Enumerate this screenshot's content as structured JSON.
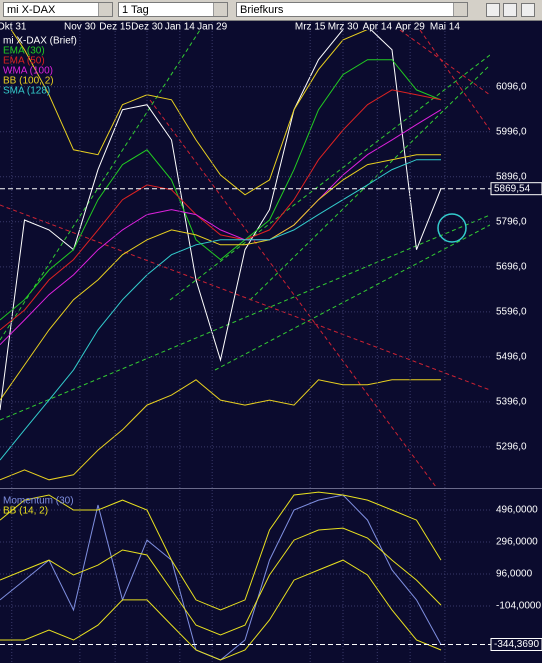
{
  "toolbar": {
    "symbol": "mi X-DAX",
    "interval": "1 Tag",
    "price_type": "Briefkurs"
  },
  "chart_data": [
    {
      "type": "line",
      "grid": true,
      "x": [
        0,
        5,
        10,
        15,
        20,
        25,
        30,
        35,
        40,
        45,
        50,
        55,
        60,
        65,
        70,
        75,
        80,
        85,
        90
      ],
      "xlim": [
        0,
        100
      ],
      "xticks": [
        {
          "value": 2.4,
          "label": "Okt 31"
        },
        {
          "value": 16.3,
          "label": "Nov 30"
        },
        {
          "value": 23.5,
          "label": "Dez 15"
        },
        {
          "value": 30,
          "label": "Dez 30"
        },
        {
          "value": 36.7,
          "label": "Jan 14"
        },
        {
          "value": 43.3,
          "label": "Jan 29"
        },
        {
          "value": 63.3,
          "label": "Mrz 15"
        },
        {
          "value": 70,
          "label": "Mrz 30"
        },
        {
          "value": 77,
          "label": "Apr 14"
        },
        {
          "value": 83.7,
          "label": "Apr 29"
        },
        {
          "value": 90.8,
          "label": "Mai 14"
        }
      ],
      "ylim": [
        5207,
        6222
      ],
      "yticks": [
        {
          "value": 5296,
          "label": "5296,0"
        },
        {
          "value": 5396,
          "label": "5396,0"
        },
        {
          "value": 5496,
          "label": "5496,0"
        },
        {
          "value": 5596,
          "label": "5596,0"
        },
        {
          "value": 5696,
          "label": "5696,0"
        },
        {
          "value": 5796,
          "label": "5796,0"
        },
        {
          "value": 5896,
          "label": "5896,0"
        },
        {
          "value": 5996,
          "label": "5996,0"
        },
        {
          "value": 6096,
          "label": "6096,0"
        }
      ],
      "last_value": {
        "value": 5869.54,
        "label": "5869,54"
      },
      "series": [
        {
          "name": "mi X-DAX (Brief)",
          "color": "#ffffff",
          "values": [
            5378,
            5800,
            5778,
            5734,
            5912,
            6045,
            6056,
            5978,
            5667,
            5489,
            5734,
            5823,
            6045,
            6156,
            6223,
            6230,
            6178,
            5734,
            5869.54
          ]
        },
        {
          "name": "EMA (30)",
          "color": "#22cc22",
          "values": [
            5578,
            5623,
            5689,
            5734,
            5845,
            5923,
            5956,
            5889,
            5756,
            5712,
            5756,
            5800,
            5912,
            6045,
            6123,
            6156,
            6156,
            6089,
            6067
          ]
        },
        {
          "name": "EMA (50)",
          "color": "#dd2222",
          "values": [
            5556,
            5600,
            5667,
            5712,
            5778,
            5845,
            5878,
            5867,
            5812,
            5767,
            5756,
            5778,
            5845,
            5934,
            6000,
            6056,
            6089,
            6078,
            6067
          ]
        },
        {
          "name": "WMA (100)",
          "color": "#dd22dd",
          "values": [
            5523,
            5578,
            5634,
            5678,
            5734,
            5778,
            5812,
            5823,
            5812,
            5778,
            5756,
            5756,
            5789,
            5845,
            5900,
            5945,
            5978,
            6012,
            6045
          ]
        },
        {
          "name": "BB (100, 2)",
          "color": "#e8d020",
          "values": [
            5400,
            5478,
            5556,
            5623,
            5667,
            5723,
            5756,
            5778,
            5767,
            5745,
            5745,
            5756,
            5789,
            5845,
            5889,
            5923,
            5934,
            5945,
            5945
          ],
          "upper": [
            6260,
            6178,
            6078,
            5956,
            5945,
            6056,
            6078,
            6067,
            5978,
            5900,
            5856,
            5889,
            6045,
            6134,
            6200,
            6223,
            6223,
            6223,
            6223
          ],
          "lower": [
            5223,
            5245,
            5223,
            5234,
            5289,
            5334,
            5389,
            5411,
            5445,
            5400,
            5389,
            5400,
            5389,
            5445,
            5434,
            5434,
            5445,
            5445,
            5445
          ]
        },
        {
          "name": "SMA (128)",
          "color": "#33cccc",
          "values": [
            5267,
            5334,
            5400,
            5467,
            5556,
            5623,
            5678,
            5723,
            5745,
            5756,
            5756,
            5756,
            5778,
            5812,
            5845,
            5878,
            5912,
            5934,
            5934
          ]
        }
      ]
    },
    {
      "type": "line",
      "grid": true,
      "x": [
        0,
        5,
        10,
        15,
        20,
        25,
        30,
        35,
        40,
        45,
        50,
        55,
        60,
        65,
        70,
        75,
        80,
        85,
        90
      ],
      "xlim": [
        0,
        100
      ],
      "ylim": [
        -460,
        621
      ],
      "yticks": [
        {
          "value": 496,
          "label": "496,0000"
        },
        {
          "value": 296,
          "label": "296,0000"
        },
        {
          "value": 96,
          "label": "96,0000"
        },
        {
          "value": -104,
          "label": "-104,0000"
        }
      ],
      "last_value": {
        "value": -344.369,
        "label": "-344,3690"
      },
      "series": [
        {
          "name": "Momentum (30)",
          "color": "#7f8fe0",
          "values": [
            -66,
            58,
            183,
            -129,
            527,
            -66,
            308,
            183,
            -379,
            -441,
            -316,
            183,
            496,
            558,
            590,
            433,
            121,
            -66,
            -344.369
          ]
        },
        {
          "name": "BB (14, 2)",
          "color": "#e8e020",
          "values": [
            58,
            121,
            183,
            90,
            152,
            246,
            215,
            -4,
            -223,
            -285,
            -223,
            90,
            308,
            371,
            383,
            321,
            183,
            58,
            -98
          ],
          "upper": [
            433,
            558,
            590,
            496,
            496,
            558,
            496,
            183,
            -66,
            -129,
            -66,
            371,
            590,
            608,
            590,
            558,
            496,
            433,
            183
          ],
          "lower": [
            -316,
            -316,
            -254,
            -316,
            -223,
            -66,
            -66,
            -223,
            -379,
            -441,
            -379,
            -191,
            58,
            121,
            183,
            90,
            -129,
            -316,
            -379
          ]
        }
      ]
    }
  ]
}
